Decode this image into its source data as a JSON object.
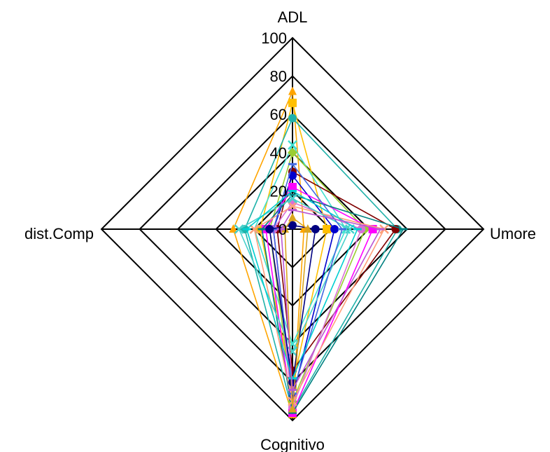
{
  "chart_data": {
    "type": "radar",
    "axes": [
      "ADL",
      "Umore",
      "Cognitivo",
      "dist.Comp"
    ],
    "rlim": [
      0,
      100
    ],
    "ticks": [
      0,
      20,
      40,
      60,
      80,
      100
    ],
    "tick_labels": [
      "0",
      "20",
      "40",
      "60",
      "80",
      "100"
    ],
    "grid": true,
    "series": [
      {
        "color": "#FFA500",
        "marker": "triangle",
        "values": [
          72,
          6,
          97,
          31
        ]
      },
      {
        "color": "#FFC000",
        "marker": "square",
        "values": [
          66,
          18,
          82,
          17
        ]
      },
      {
        "color": "#20B2AA",
        "marker": "circle",
        "values": [
          58,
          55,
          95,
          25
        ]
      },
      {
        "color": "#40E0D0",
        "marker": "cross",
        "values": [
          44,
          28,
          60,
          20
        ]
      },
      {
        "color": "#9ACD32",
        "marker": "diamond",
        "values": [
          40,
          38,
          90,
          12
        ]
      },
      {
        "color": "#800000",
        "marker": "circle",
        "values": [
          30,
          54,
          74,
          8
        ]
      },
      {
        "color": "#0000CD",
        "marker": "circle",
        "values": [
          28,
          22,
          88,
          10
        ]
      },
      {
        "color": "#FF00FF",
        "marker": "square",
        "values": [
          22,
          42,
          96,
          14
        ]
      },
      {
        "color": "#DA70D6",
        "marker": "circle",
        "values": [
          14,
          36,
          93,
          10
        ]
      },
      {
        "color": "#008080",
        "marker": "line",
        "values": [
          18,
          58,
          96,
          16
        ]
      },
      {
        "color": "#FFA07A",
        "marker": "cross",
        "values": [
          12,
          48,
          90,
          20
        ]
      },
      {
        "color": "#48D1CC",
        "marker": "cross",
        "values": [
          16,
          30,
          64,
          28
        ]
      },
      {
        "color": "#4169E1",
        "marker": "line",
        "values": [
          34,
          26,
          86,
          10
        ]
      },
      {
        "color": "#000080",
        "marker": "circle",
        "values": [
          2,
          12,
          80,
          12
        ]
      },
      {
        "color": "#DAA520",
        "marker": "triangle",
        "values": [
          6,
          8,
          94,
          4
        ]
      },
      {
        "color": "#00CED1",
        "marker": "line",
        "values": [
          20,
          34,
          78,
          24
        ]
      },
      {
        "color": "#BA55D3",
        "marker": "line",
        "values": [
          10,
          46,
          84,
          6
        ]
      }
    ]
  }
}
